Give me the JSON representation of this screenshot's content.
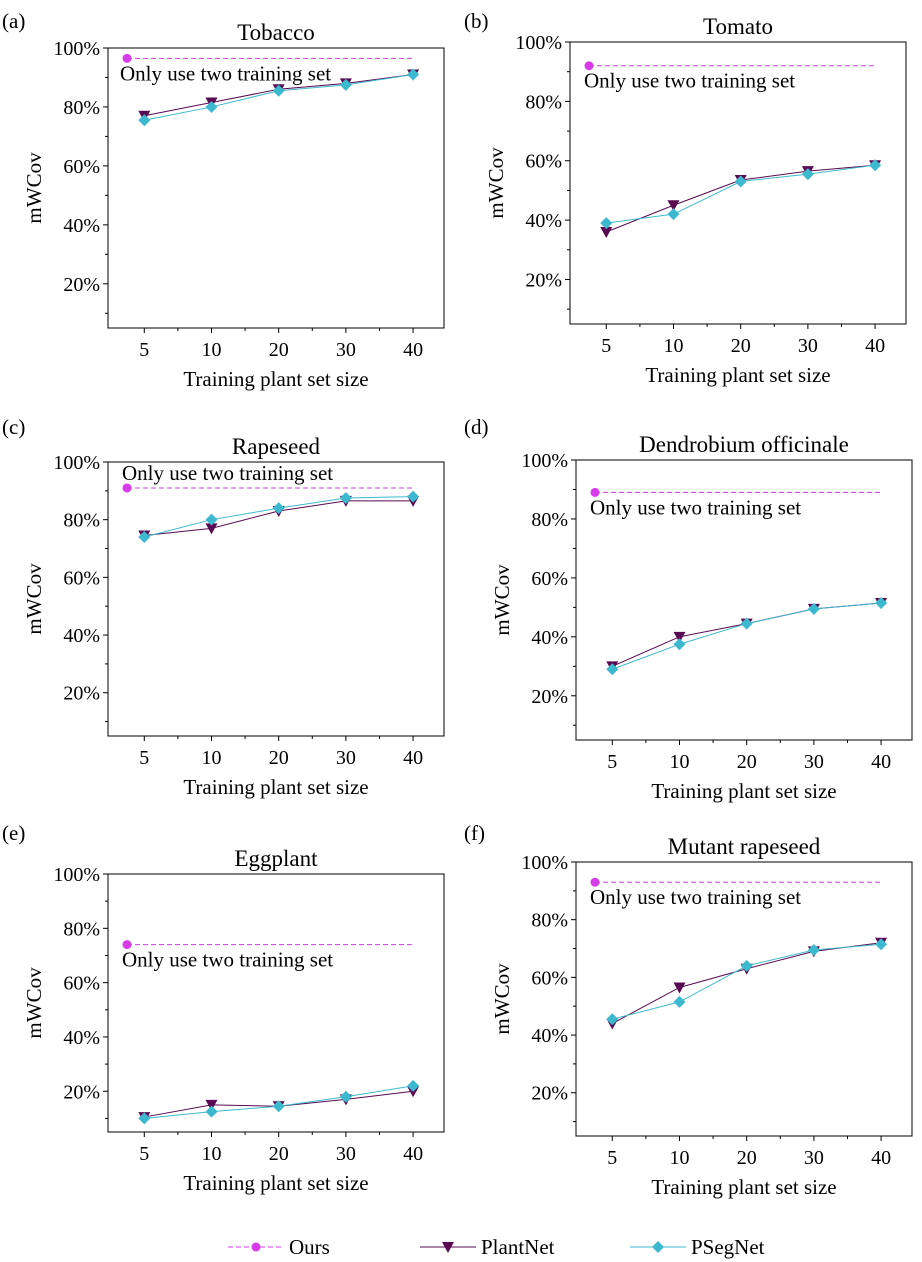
{
  "chart_data": [
    {
      "type": "line",
      "panel_label": "(a)",
      "title": "Tobacco",
      "xlabel": "Training plant set size",
      "ylabel": "mWCov",
      "categories": [
        "5",
        "10",
        "20",
        "30",
        "40"
      ],
      "ylim": [
        5,
        100
      ],
      "yticks": [
        "20%",
        "40%",
        "60%",
        "80%",
        "100%"
      ],
      "series": [
        {
          "name": "PlantNet",
          "values": [
            77,
            81.5,
            86,
            88,
            91
          ]
        },
        {
          "name": "PSegNet",
          "values": [
            75.5,
            80,
            85.5,
            87.5,
            91
          ]
        }
      ],
      "ours": {
        "name": "Ours",
        "value": 96.5,
        "annotation": "Only use two training set"
      }
    },
    {
      "type": "line",
      "panel_label": "(b)",
      "title": "Tomato",
      "xlabel": "Training plant set size",
      "ylabel": "mWCov",
      "categories": [
        "5",
        "10",
        "20",
        "30",
        "40"
      ],
      "ylim": [
        5,
        100
      ],
      "yticks": [
        "20%",
        "40%",
        "60%",
        "80%",
        "100%"
      ],
      "series": [
        {
          "name": "PlantNet",
          "values": [
            36,
            45,
            53.5,
            56.5,
            58.5
          ]
        },
        {
          "name": "PSegNet",
          "values": [
            39,
            42,
            53,
            55.5,
            58.5
          ]
        }
      ],
      "ours": {
        "name": "Ours",
        "value": 92,
        "annotation": "Only use two training set"
      }
    },
    {
      "type": "line",
      "panel_label": "(c)",
      "title": "Rapeseed",
      "xlabel": "Training plant set size",
      "ylabel": "mWCov",
      "categories": [
        "5",
        "10",
        "20",
        "30",
        "40"
      ],
      "ylim": [
        5,
        100
      ],
      "yticks": [
        "20%",
        "40%",
        "60%",
        "80%",
        "100%"
      ],
      "series": [
        {
          "name": "PlantNet",
          "values": [
            74.5,
            77,
            83,
            86.5,
            86.5
          ]
        },
        {
          "name": "PSegNet",
          "values": [
            74,
            80,
            84,
            87.5,
            88
          ]
        }
      ],
      "ours": {
        "name": "Ours",
        "value": 91,
        "annotation": "Only use two training set"
      }
    },
    {
      "type": "line",
      "panel_label": "(d)",
      "title": "Dendrobium officinale",
      "xlabel": "Training plant set size",
      "ylabel": "mWCov",
      "categories": [
        "5",
        "10",
        "20",
        "30",
        "40"
      ],
      "ylim": [
        5,
        100
      ],
      "yticks": [
        "20%",
        "40%",
        "60%",
        "80%",
        "100%"
      ],
      "series": [
        {
          "name": "PlantNet",
          "values": [
            30,
            40,
            44.5,
            49.5,
            51.5
          ]
        },
        {
          "name": "PSegNet",
          "values": [
            29,
            37.5,
            44.5,
            49.5,
            51.5
          ]
        }
      ],
      "ours": {
        "name": "Ours",
        "value": 89,
        "annotation": "Only use two training set"
      }
    },
    {
      "type": "line",
      "panel_label": "(e)",
      "title": "Eggplant",
      "xlabel": "Training plant set size",
      "ylabel": "mWCov",
      "categories": [
        "5",
        "10",
        "20",
        "30",
        "40"
      ],
      "ylim": [
        5,
        100
      ],
      "yticks": [
        "20%",
        "40%",
        "60%",
        "80%",
        "100%"
      ],
      "series": [
        {
          "name": "PlantNet",
          "values": [
            10.5,
            15,
            14.5,
            17,
            20
          ]
        },
        {
          "name": "PSegNet",
          "values": [
            10,
            12.5,
            14.5,
            18,
            22
          ]
        }
      ],
      "ours": {
        "name": "Ours",
        "value": 74,
        "annotation": "Only use two training set"
      }
    },
    {
      "type": "line",
      "panel_label": "(f)",
      "title": "Mutant rapeseed",
      "xlabel": "Training plant set size",
      "ylabel": "mWCov",
      "categories": [
        "5",
        "10",
        "20",
        "30",
        "40"
      ],
      "ylim": [
        5,
        100
      ],
      "yticks": [
        "20%",
        "40%",
        "60%",
        "80%",
        "100%"
      ],
      "series": [
        {
          "name": "PlantNet",
          "values": [
            44,
            56.5,
            63,
            69,
            72
          ]
        },
        {
          "name": "PSegNet",
          "values": [
            45.5,
            51.5,
            64,
            69.5,
            71.5
          ]
        }
      ],
      "ours": {
        "name": "Ours",
        "value": 93,
        "annotation": "Only use two training set"
      }
    }
  ],
  "legend": {
    "position": "bottom",
    "items": [
      {
        "label": "Ours",
        "marker": "circle",
        "line": "dashed"
      },
      {
        "label": "PlantNet",
        "marker": "triangle-down",
        "line": "solid"
      },
      {
        "label": "PSegNet",
        "marker": "diamond",
        "line": "solid"
      }
    ]
  },
  "colors": {
    "ours": "#d83bea",
    "plantnet": "#5a0a52",
    "psegnet": "#3db9cf"
  }
}
